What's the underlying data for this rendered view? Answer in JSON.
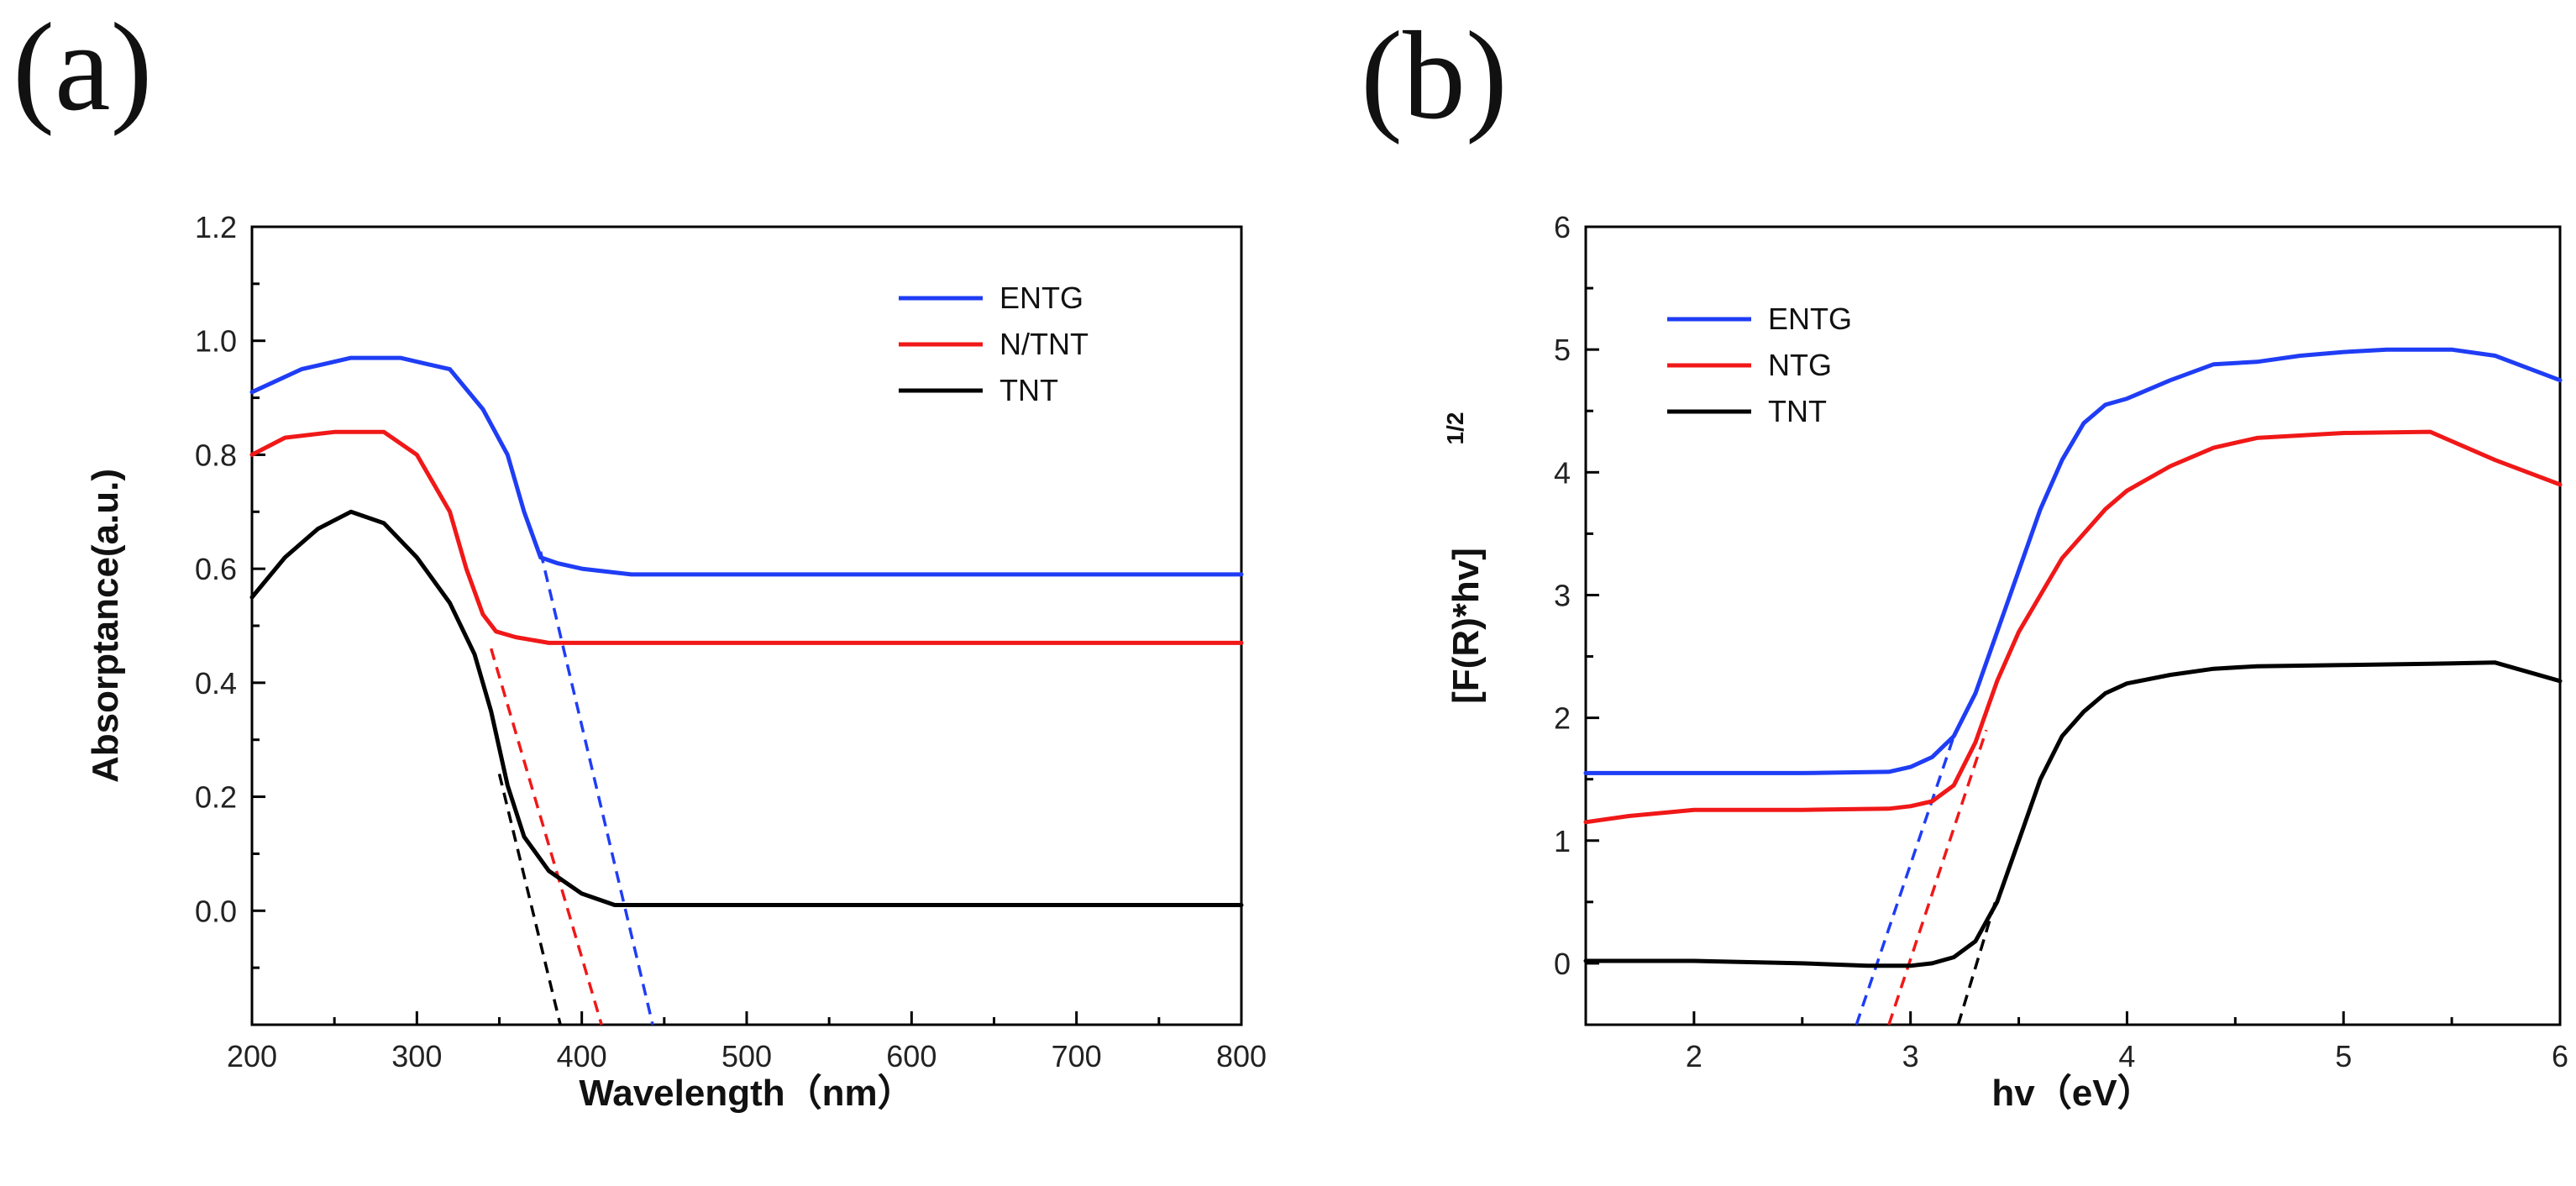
{
  "chart_data": [
    {
      "type": "line",
      "panel_label": "(a)",
      "xlabel": "Wavelength（nm）",
      "ylabel": "Absorptance(a.u.)",
      "xlim": [
        200,
        800
      ],
      "ylim": [
        -0.2,
        1.2
      ],
      "xticks": [
        "200",
        "300",
        "400",
        "500",
        "600",
        "700",
        "800"
      ],
      "yticks": [
        "0.0",
        "0.2",
        "0.4",
        "0.6",
        "0.8",
        "1.0",
        "1.2"
      ],
      "colors": {
        "ENTG": "#1f3df5",
        "N/TNT": "#f01818",
        "TNT": "#000000"
      },
      "legend": [
        "ENTG",
        "N/TNT",
        "TNT"
      ],
      "legend_position": "top-right",
      "series": [
        {
          "name": "ENTG",
          "x": [
            200,
            230,
            260,
            290,
            320,
            340,
            355,
            365,
            375,
            385,
            400,
            430,
            500,
            800
          ],
          "y": [
            0.91,
            0.95,
            0.97,
            0.97,
            0.95,
            0.88,
            0.8,
            0.7,
            0.62,
            0.61,
            0.6,
            0.59,
            0.59,
            0.59
          ]
        },
        {
          "name": "N/TNT",
          "x": [
            200,
            220,
            250,
            280,
            300,
            320,
            330,
            340,
            348,
            360,
            380,
            400,
            800
          ],
          "y": [
            0.8,
            0.83,
            0.84,
            0.84,
            0.8,
            0.7,
            0.6,
            0.52,
            0.49,
            0.48,
            0.47,
            0.47,
            0.47
          ]
        },
        {
          "name": "TNT",
          "x": [
            200,
            220,
            240,
            260,
            280,
            300,
            320,
            335,
            345,
            355,
            365,
            380,
            400,
            420,
            450,
            800
          ],
          "y": [
            0.55,
            0.62,
            0.67,
            0.7,
            0.68,
            0.62,
            0.54,
            0.45,
            0.35,
            0.22,
            0.13,
            0.07,
            0.03,
            0.01,
            0.01,
            0.01
          ]
        }
      ],
      "tangents": [
        {
          "name": "ENTG",
          "x": [
            375,
            443
          ],
          "y": [
            0.63,
            -0.2
          ]
        },
        {
          "name": "N/TNT",
          "x": [
            345,
            412
          ],
          "y": [
            0.46,
            -0.2
          ]
        },
        {
          "name": "TNT",
          "x": [
            350,
            387
          ],
          "y": [
            0.24,
            -0.2
          ]
        }
      ]
    },
    {
      "type": "line",
      "panel_label": "(b)",
      "xlabel": "hv（eV）",
      "ylabel": "[F(R)*hv]",
      "ylabel_sup": "1/2",
      "xlim": [
        1.5,
        6
      ],
      "ylim": [
        -0.5,
        6
      ],
      "xticks": [
        "2",
        "3",
        "4",
        "5",
        "6"
      ],
      "yticks": [
        "0",
        "1",
        "2",
        "3",
        "4",
        "5",
        "6"
      ],
      "colors": {
        "ENTG": "#1f3df5",
        "NTG": "#f01818",
        "TNT": "#000000"
      },
      "legend": [
        "ENTG",
        "NTG",
        "TNT"
      ],
      "legend_position": "top-left",
      "series": [
        {
          "name": "ENTG",
          "x": [
            1.5,
            2.0,
            2.5,
            2.9,
            3.0,
            3.1,
            3.2,
            3.3,
            3.4,
            3.5,
            3.6,
            3.7,
            3.8,
            3.9,
            4.0,
            4.2,
            4.4,
            4.6,
            4.8,
            5.0,
            5.2,
            5.5,
            5.7,
            6.0
          ],
          "y": [
            1.55,
            1.55,
            1.55,
            1.56,
            1.6,
            1.68,
            1.85,
            2.2,
            2.7,
            3.2,
            3.7,
            4.1,
            4.4,
            4.55,
            4.6,
            4.75,
            4.88,
            4.9,
            4.95,
            4.98,
            5.0,
            5.0,
            4.95,
            4.75
          ]
        },
        {
          "name": "NTG",
          "x": [
            1.5,
            1.7,
            2.0,
            2.5,
            2.9,
            3.0,
            3.1,
            3.2,
            3.3,
            3.4,
            3.5,
            3.6,
            3.7,
            3.8,
            3.9,
            4.0,
            4.2,
            4.4,
            4.6,
            5.0,
            5.4,
            5.7,
            6.0
          ],
          "y": [
            1.15,
            1.2,
            1.25,
            1.25,
            1.26,
            1.28,
            1.32,
            1.45,
            1.8,
            2.3,
            2.7,
            3.0,
            3.3,
            3.5,
            3.7,
            3.85,
            4.05,
            4.2,
            4.28,
            4.32,
            4.33,
            4.1,
            3.9
          ]
        },
        {
          "name": "TNT",
          "x": [
            1.5,
            2.0,
            2.5,
            2.8,
            3.0,
            3.1,
            3.2,
            3.3,
            3.4,
            3.5,
            3.6,
            3.7,
            3.8,
            3.9,
            4.0,
            4.2,
            4.4,
            4.6,
            5.0,
            5.4,
            5.7,
            6.0
          ],
          "y": [
            0.02,
            0.02,
            0.0,
            -0.02,
            -0.02,
            0.0,
            0.05,
            0.18,
            0.5,
            1.0,
            1.5,
            1.85,
            2.05,
            2.2,
            2.28,
            2.35,
            2.4,
            2.42,
            2.43,
            2.44,
            2.45,
            2.3
          ]
        }
      ],
      "tangents": [
        {
          "name": "ENTG",
          "x": [
            2.75,
            3.2
          ],
          "y": [
            -0.5,
            1.85
          ]
        },
        {
          "name": "NTG",
          "x": [
            2.9,
            3.35
          ],
          "y": [
            -0.5,
            1.9
          ]
        },
        {
          "name": "TNT",
          "x": [
            3.22,
            3.4
          ],
          "y": [
            -0.5,
            0.55
          ]
        }
      ]
    }
  ]
}
